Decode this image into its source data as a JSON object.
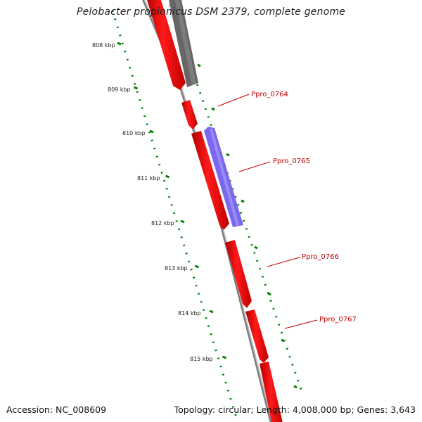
{
  "title": "Pelobacter propionicus DSM 2379, complete genome",
  "footer": {
    "accession": "Accession: NC_008609",
    "summary": "Topology: circular; Length: 4,008,000 bp; Genes: 3,643"
  },
  "ruler": {
    "unit": "kbp",
    "labels": [
      "808 kbp",
      "809 kbp",
      "810 kbp",
      "811 kbp",
      "812 kbp",
      "813 kbp",
      "814 kbp",
      "815 kbp"
    ],
    "color": "#008000"
  },
  "genes": [
    {
      "label": "Ppro_0764"
    },
    {
      "label": "Ppro_0765"
    },
    {
      "label": "Ppro_0766"
    },
    {
      "label": "Ppro_0767"
    }
  ],
  "colors": {
    "forward_cds": "#ff0000",
    "reverse_cds": "#7b68ee",
    "gray_feature": "#666666",
    "backbone": "#7f7f7f",
    "label": "#c00000"
  }
}
